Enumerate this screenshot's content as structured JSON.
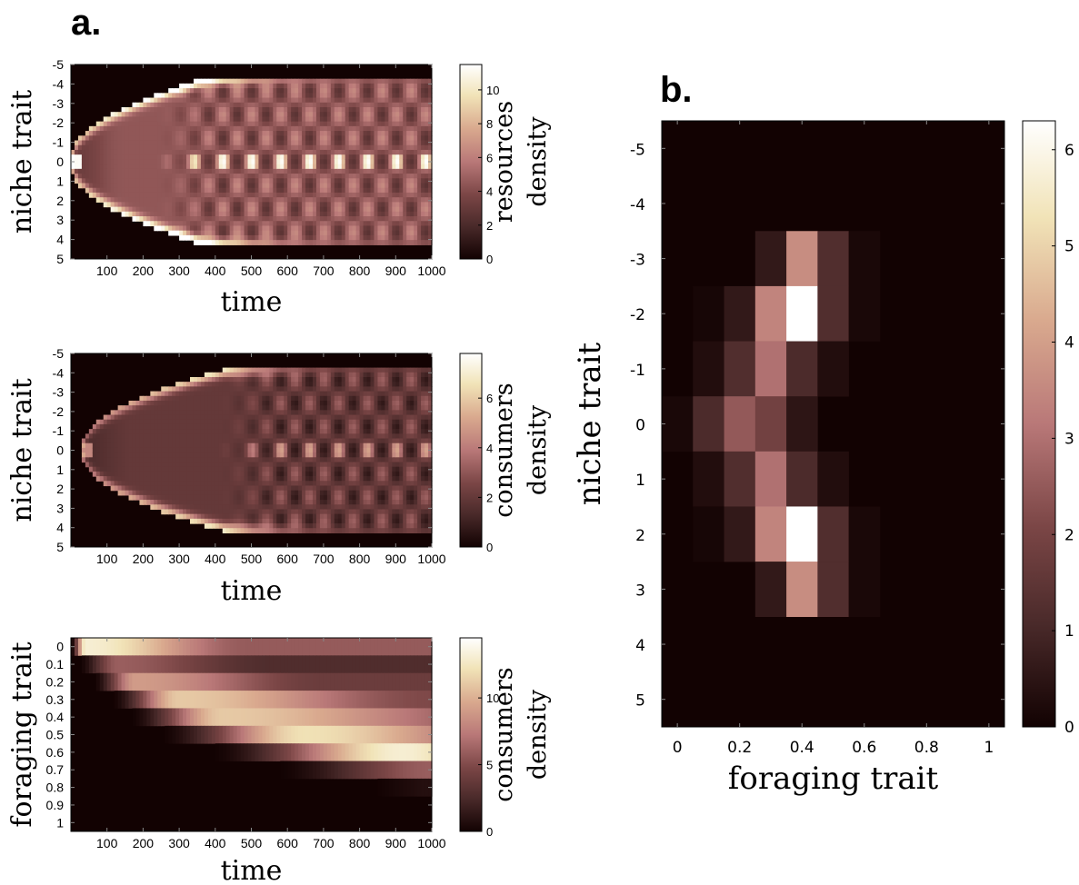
{
  "figure": {
    "panel_a_label": "a.",
    "panel_b_label": "b."
  },
  "colormap": [
    "#120202",
    "#4a2a2a",
    "#7b4646",
    "#b97878",
    "#d9a98e",
    "#f1e3b7",
    "#ffffff"
  ],
  "chart_data": [
    {
      "id": "a1",
      "type": "heatmap",
      "xlabel": "time",
      "ylabel": "niche trait",
      "colorbar_label": [
        "resources",
        "density"
      ],
      "x_ticks": [
        100,
        200,
        300,
        400,
        500,
        600,
        700,
        800,
        900,
        1000
      ],
      "x_ticklabels": [
        "100",
        "200",
        "300",
        "400",
        "500",
        "600",
        "700",
        "800",
        "900",
        "1000"
      ],
      "xlim": [
        0,
        1000
      ],
      "y_ticks": [
        -5,
        -4,
        -3,
        -2,
        -1,
        0,
        1,
        2,
        3,
        4,
        5
      ],
      "y_ticklabels": [
        "-5",
        "-4",
        "-3",
        "-2",
        "-1",
        "0",
        "1",
        "2",
        "3",
        "4",
        "5"
      ],
      "ylim": [
        -5,
        5
      ],
      "colorbar_ticks": [
        0,
        2,
        4,
        6,
        8,
        10
      ],
      "colorbar_ticklabels": [
        "0",
        "2",
        "4",
        "6",
        "8",
        "10"
      ],
      "colorbar_max": 11.5,
      "model": {
        "kind": "niche",
        "front_start": 0,
        "front_time": 380,
        "final_halfwidth": 4.2,
        "interior": 4.5,
        "edge_peak": 10,
        "center_peak": 10,
        "osc_start": 230,
        "osc_amp": 2.0
      }
    },
    {
      "id": "a2",
      "type": "heatmap",
      "xlabel": "time",
      "ylabel": "niche trait",
      "colorbar_label": [
        "consumers",
        "density"
      ],
      "x_ticks": [
        100,
        200,
        300,
        400,
        500,
        600,
        700,
        800,
        900,
        1000
      ],
      "x_ticklabels": [
        "100",
        "200",
        "300",
        "400",
        "500",
        "600",
        "700",
        "800",
        "900",
        "1000"
      ],
      "xlim": [
        0,
        1000
      ],
      "y_ticks": [
        -5,
        -4,
        -3,
        -2,
        -1,
        0,
        1,
        2,
        3,
        4,
        5
      ],
      "y_ticklabels": [
        "-5",
        "-4",
        "-3",
        "-2",
        "-1",
        "0",
        "1",
        "2",
        "3",
        "4",
        "5"
      ],
      "ylim": [
        -5,
        5
      ],
      "colorbar_ticks": [
        0,
        2,
        4,
        6
      ],
      "colorbar_ticklabels": [
        "0",
        "2",
        "4",
        "6"
      ],
      "colorbar_max": 7.8,
      "model": {
        "kind": "niche",
        "front_start": 30,
        "front_time": 420,
        "final_halfwidth": 4.0,
        "interior": 2.0,
        "edge_peak": 5.0,
        "center_peak": 3.6,
        "osc_start": 400,
        "osc_amp": 1.3
      }
    },
    {
      "id": "a3",
      "type": "heatmap",
      "xlabel": "time",
      "ylabel": "foraging trait",
      "colorbar_label": [
        "consumers",
        "density"
      ],
      "x_ticks": [
        100,
        200,
        300,
        400,
        500,
        600,
        700,
        800,
        900,
        1000
      ],
      "x_ticklabels": [
        "100",
        "200",
        "300",
        "400",
        "500",
        "600",
        "700",
        "800",
        "900",
        "1000"
      ],
      "xlim": [
        0,
        1000
      ],
      "y_ticks": [
        0,
        0.1,
        0.2,
        0.3,
        0.4,
        0.5,
        0.6,
        0.7,
        0.8,
        0.9,
        1
      ],
      "y_ticklabels": [
        "0",
        "0.1",
        "0.2",
        "0.3",
        "0.4",
        "0.5",
        "0.6",
        "0.7",
        "0.8",
        "0.9",
        "1"
      ],
      "ylim": [
        -0.05,
        1.05
      ],
      "colorbar_ticks": [
        0,
        5,
        10
      ],
      "colorbar_ticklabels": [
        "0",
        "5",
        "10"
      ],
      "colorbar_max": 14.5,
      "bands": [
        {
          "foraging": 0.0,
          "t_start": 0,
          "t_peak": 40,
          "t_end": 190,
          "peak": 13
        },
        {
          "foraging": 0.1,
          "t_start": 20,
          "t_peak": 130,
          "t_end": 260,
          "peak": 6
        },
        {
          "foraging": 0.2,
          "t_start": 60,
          "t_peak": 180,
          "t_end": 400,
          "peak": 9
        },
        {
          "foraging": 0.3,
          "t_start": 110,
          "t_peak": 300,
          "t_end": 700,
          "peak": 11
        },
        {
          "foraging": 0.4,
          "t_start": 160,
          "t_peak": 420,
          "t_end": 1000,
          "peak": 11
        },
        {
          "foraging": 0.5,
          "t_start": 240,
          "t_peak": 650,
          "t_end": 1000,
          "peak": 12
        },
        {
          "foraging": 0.6,
          "t_start": 380,
          "t_peak": 920,
          "t_end": 1000,
          "peak": 13
        },
        {
          "foraging": 0.7,
          "t_start": 560,
          "t_peak": 1000,
          "t_end": 1000,
          "peak": 6
        },
        {
          "foraging": 0.8,
          "t_start": 820,
          "t_peak": 1000,
          "t_end": 1000,
          "peak": 0.8
        }
      ]
    },
    {
      "id": "b",
      "type": "heatmap",
      "xlabel": "foraging trait",
      "ylabel": "niche trait",
      "x_ticks": [
        0,
        0.2,
        0.4,
        0.6,
        0.8,
        1
      ],
      "x_ticklabels": [
        "0",
        "0.2",
        "0.4",
        "0.6",
        "0.8",
        "1"
      ],
      "xlim": [
        -0.05,
        1.05
      ],
      "y_ticks": [
        -5,
        -4,
        -3,
        -2,
        -1,
        0,
        1,
        2,
        3,
        4,
        5
      ],
      "y_ticklabels": [
        "-5",
        "-4",
        "-3",
        "-2",
        "-1",
        "0",
        "1",
        "2",
        "3",
        "4",
        "5"
      ],
      "ylim": [
        -5.5,
        5.5
      ],
      "colorbar_ticks": [
        0,
        1,
        2,
        3,
        4,
        5,
        6
      ],
      "colorbar_ticklabels": [
        "0",
        "1",
        "2",
        "3",
        "4",
        "5",
        "6"
      ],
      "colorbar_max": 6.3,
      "x_values": [
        0,
        0.1,
        0.2,
        0.3,
        0.4,
        0.5,
        0.6,
        0.7,
        0.8,
        0.9,
        1
      ],
      "y_values": [
        -5,
        -4,
        -3,
        -2,
        -1,
        0,
        1,
        2,
        3,
        4,
        5
      ],
      "z": [
        [
          0,
          0,
          0,
          0,
          0,
          0,
          0,
          0,
          0,
          0,
          0
        ],
        [
          0,
          0,
          0,
          0,
          0,
          0,
          0,
          0,
          0,
          0,
          0
        ],
        [
          0,
          0,
          0,
          0.6,
          3.6,
          1.2,
          0.15,
          0,
          0,
          0,
          0
        ],
        [
          0,
          0.1,
          0.6,
          3.4,
          6.3,
          1.2,
          0.15,
          0,
          0,
          0,
          0
        ],
        [
          0,
          0.3,
          1.2,
          3.0,
          1.1,
          0.3,
          0,
          0,
          0,
          0,
          0
        ],
        [
          0.15,
          1.1,
          2.5,
          1.9,
          0.5,
          0,
          0,
          0,
          0,
          0,
          0
        ],
        [
          0,
          0.3,
          1.2,
          3.0,
          1.1,
          0.3,
          0,
          0,
          0,
          0,
          0
        ],
        [
          0,
          0.1,
          0.6,
          3.4,
          6.3,
          1.2,
          0.15,
          0,
          0,
          0,
          0
        ],
        [
          0,
          0,
          0,
          0.6,
          3.6,
          1.2,
          0.15,
          0,
          0,
          0,
          0
        ],
        [
          0,
          0,
          0,
          0,
          0,
          0,
          0,
          0,
          0,
          0,
          0
        ],
        [
          0,
          0,
          0,
          0,
          0,
          0,
          0,
          0,
          0,
          0,
          0
        ]
      ]
    }
  ]
}
